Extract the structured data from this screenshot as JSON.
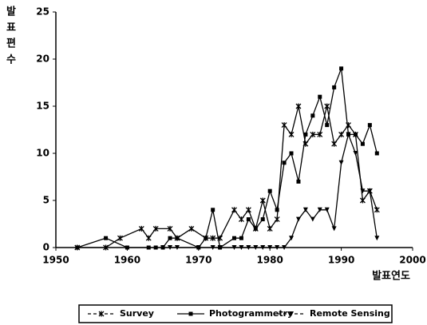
{
  "chart_data": {
    "type": "line",
    "y_label_chars": [
      "발",
      "표",
      "편",
      "수"
    ],
    "x_label": "발표연도",
    "xlim": [
      1950,
      2000
    ],
    "xticks": [
      1950,
      1960,
      1970,
      1980,
      1990,
      2000
    ],
    "ylim": [
      0,
      25
    ],
    "yticks": [
      0,
      5,
      10,
      15,
      20,
      25
    ],
    "series": [
      {
        "name": "Survey",
        "color": "#000000",
        "marker": "x",
        "x": [
          1953,
          1957,
          1959,
          1962,
          1963,
          1964,
          1966,
          1967,
          1969,
          1971,
          1972,
          1973,
          1975,
          1976,
          1977,
          1978,
          1979,
          1980,
          1981,
          1982,
          1983,
          1984,
          1985,
          1986,
          1987,
          1988,
          1989,
          1990,
          1991,
          1992,
          1993,
          1994,
          1995
        ],
        "values": [
          0,
          0,
          1,
          2,
          1,
          2,
          2,
          1,
          2,
          1,
          1,
          1,
          4,
          3,
          4,
          2,
          5,
          2,
          3,
          13,
          12,
          15,
          11,
          12,
          12,
          15,
          11,
          12,
          13,
          12,
          5,
          6,
          4
        ]
      },
      {
        "name": "Photogrammetry",
        "color": "#000000",
        "marker": "square",
        "x": [
          1953,
          1957,
          1960,
          1963,
          1964,
          1965,
          1966,
          1967,
          1970,
          1971,
          1972,
          1973,
          1975,
          1976,
          1977,
          1978,
          1979,
          1980,
          1981,
          1982,
          1983,
          1984,
          1985,
          1986,
          1987,
          1988,
          1989,
          1990,
          1991,
          1992,
          1993,
          1994,
          1995
        ],
        "values": [
          0,
          1,
          0,
          0,
          0,
          0,
          1,
          1,
          0,
          1,
          4,
          0,
          1,
          1,
          3,
          2,
          3,
          6,
          4,
          9,
          10,
          7,
          12,
          14,
          16,
          13,
          17,
          19,
          12,
          12,
          11,
          13,
          10
        ]
      },
      {
        "name": "Remote Sensing",
        "color": "#000000",
        "marker": "triangle",
        "x": [
          1965,
          1966,
          1967,
          1970,
          1972,
          1973,
          1975,
          1976,
          1977,
          1978,
          1979,
          1980,
          1981,
          1982,
          1983,
          1984,
          1985,
          1986,
          1987,
          1988,
          1989,
          1990,
          1991,
          1992,
          1993,
          1994,
          1995
        ],
        "values": [
          0,
          0,
          0,
          0,
          0,
          0,
          0,
          0,
          0,
          0,
          0,
          0,
          0,
          0,
          1,
          3,
          4,
          3,
          4,
          4,
          2,
          9,
          12,
          10,
          6,
          6,
          1
        ]
      }
    ]
  }
}
